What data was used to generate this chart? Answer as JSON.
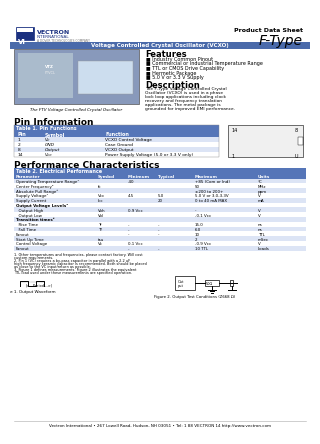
{
  "title_product": "Product Data Sheet",
  "title_type": "F-Type",
  "subtitle": "Voltage Controlled Crystal Oscillator (VCXO)",
  "features_title": "Features",
  "features": [
    "Industry Common Pinout",
    "Commercial or Industrial Temperature Range",
    "TTL or CMOS Drive Capability",
    "Hermetic Package",
    "5.0 V or 3.3 V Supply"
  ],
  "desc_title": "Description",
  "desc_text": "The F-Type Voltage Controlled Crystal Oscillator (VCXO) is used in a phase lock loop applications including clock recovery and frequency translation applications.  The metal package is grounded for improved EMI performance.",
  "pin_title": "Pin Information",
  "pin_table_title": "Table 1. Pin Functions",
  "pin_headers": [
    "Pin",
    "Symbol",
    "Function"
  ],
  "pin_rows": [
    [
      "1",
      "Vc",
      "VCXO Control Voltage"
    ],
    [
      "2",
      "GND",
      "Case Ground"
    ],
    [
      "8",
      "Output",
      "VCXO Output"
    ],
    [
      "14",
      "Vcc",
      "Power Supply Voltage (5.0 or 3.3 V only)"
    ]
  ],
  "perf_title": "Performance Characteristics",
  "perf_table_title": "Table 2. Electrical Performance",
  "perf_headers": [
    "Parameter",
    "Symbol",
    "Minimum",
    "Typical",
    "Maximum",
    "Units"
  ],
  "perf_rows": [
    [
      "Operating Temperature Range¹",
      "",
      "-40",
      "",
      "+85 (Com or Ind)",
      "°C"
    ],
    [
      "Center Frequency²",
      "fc",
      "",
      "",
      "50",
      "MHz"
    ],
    [
      "Absolute Pull Range³",
      "",
      "",
      "",
      "±200 to 200+",
      "ppm"
    ],
    [
      "Supply Voltage¹",
      "Vcc",
      "4.5",
      "5.0",
      "5.0 V or 3.0-3.3V",
      "V"
    ],
    [
      "Supply Current",
      "Icc",
      "",
      "20",
      "0 to 40 mA MAX",
      "mA"
    ],
    [
      "Output Voltage Levels⁴",
      "",
      "",
      "",
      "",
      ""
    ],
    [
      "  Output High",
      "Voh",
      "0.9 Vcc",
      "",
      "-",
      "V"
    ],
    [
      "  Output Low",
      "Vol",
      "",
      "",
      "-0.1 Vcc",
      "V"
    ],
    [
      "Transition times⁵",
      "",
      "",
      "",
      "",
      ""
    ],
    [
      "  Rise Time",
      "Tr",
      "-",
      "-",
      "15.0",
      "ns"
    ],
    [
      "  Fall Time",
      "Tf",
      "-",
      "-",
      "6.0",
      "ns"
    ],
    [
      "Fanout",
      "",
      "-",
      "-",
      "10",
      "TTL"
    ],
    [
      "Start Up Time",
      "tsu",
      "",
      "",
      "2",
      "mSec"
    ],
    [
      "Control Voltage",
      "Vc",
      "0.1 Vcc",
      "",
      "-0.9 Vcc",
      "V"
    ],
    [
      "Fanout",
      "",
      "-",
      "-",
      "10 TTL",
      "Loads"
    ]
  ],
  "footnotes": [
    "1. Other temperatures and frequencies, please contact factory. Will cost custom requirements.",
    "2. Pin 1 (VC) requires a by-pass capacitor in parallel with a 2.2 uF high frequency ceramic capacitor is recommended. Both should be placed as close to the VC input/return as possible.",
    "3. Figure 1 defines measurements. Figure 2 illustrates the equivalent TTL load used under these measurements are specified operation."
  ],
  "fig1_title": "Figure 1. Output Waveform",
  "fig2_title": "Figure 2. Output Test Conditions (Z668 Ω)",
  "footer": "Vectron International • 267 Lowell Road, Hudson, NH 03051 • Tel: 1 88 VECTRON 14 http://www.vectron.com",
  "blue_dark": "#1a3a7a",
  "blue_banner": "#4a6aaa",
  "table_hdr": "#5575b8",
  "row_alt": "#dce4f5",
  "row_white": "#ffffff",
  "bg": "#ffffff"
}
